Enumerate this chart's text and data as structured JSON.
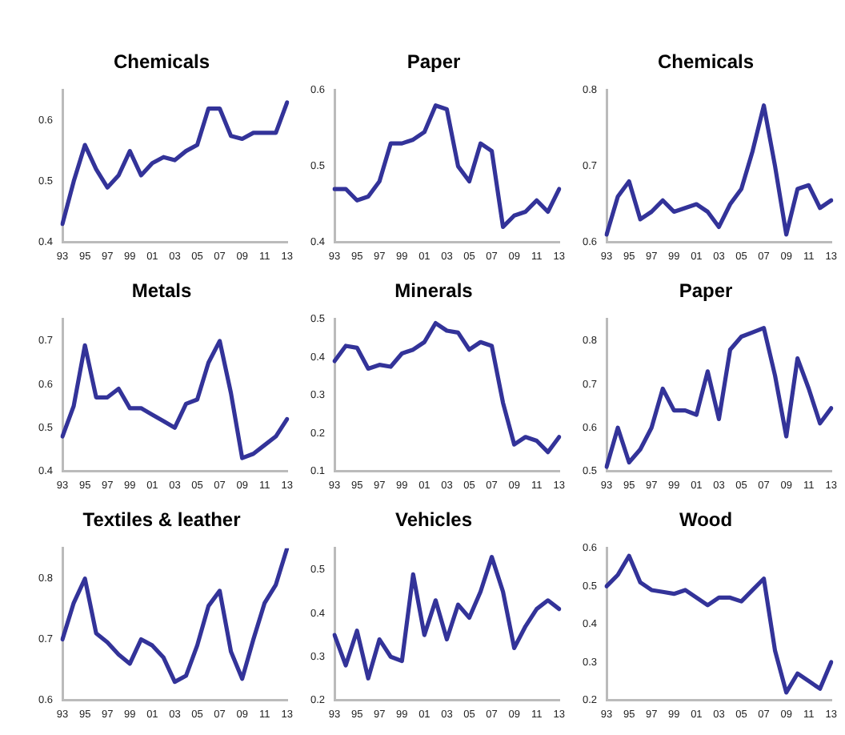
{
  "chart_data": [
    {
      "type": "line",
      "title": "Chemicals",
      "categories": [
        "93",
        null,
        "95",
        null,
        "97",
        null,
        "99",
        null,
        "01",
        null,
        "03",
        null,
        "05",
        null,
        "07",
        null,
        "09",
        null,
        "11",
        null,
        "13"
      ],
      "series": [
        {
          "color": "#333399",
          "values": [
            0.43,
            0.5,
            0.56,
            0.52,
            0.49,
            0.51,
            0.55,
            0.51,
            0.53,
            0.54,
            0.535,
            0.55,
            0.56,
            0.62,
            0.62,
            0.575,
            0.57,
            0.58,
            0.58,
            0.58,
            0.63
          ]
        }
      ],
      "ylim": [
        0.4,
        0.65
      ],
      "yticks": [
        0.4,
        0.5,
        0.6
      ],
      "grid": false,
      "legend": false
    },
    {
      "type": "line",
      "title": "Paper",
      "categories": [
        "93",
        null,
        "95",
        null,
        "97",
        null,
        "99",
        null,
        "01",
        null,
        "03",
        null,
        "05",
        null,
        "07",
        null,
        "09",
        null,
        "11",
        null,
        "13"
      ],
      "series": [
        {
          "color": "#333399",
          "values": [
            0.47,
            0.47,
            0.455,
            0.46,
            0.48,
            0.53,
            0.53,
            0.535,
            0.545,
            0.58,
            0.575,
            0.5,
            0.48,
            0.53,
            0.52,
            0.42,
            0.435,
            0.44,
            0.455,
            0.44,
            0.47
          ]
        }
      ],
      "ylim": [
        0.4,
        0.6
      ],
      "yticks": [
        0.4,
        0.5,
        0.6
      ],
      "grid": false,
      "legend": false
    },
    {
      "type": "line",
      "title": "Chemicals",
      "categories": [
        "93",
        null,
        "95",
        null,
        "97",
        null,
        "99",
        null,
        "01",
        null,
        "03",
        null,
        "05",
        null,
        "07",
        null,
        "09",
        null,
        "11",
        null,
        "13"
      ],
      "series": [
        {
          "color": "#333399",
          "values": [
            0.61,
            0.66,
            0.68,
            0.63,
            0.64,
            0.655,
            0.64,
            0.645,
            0.65,
            0.64,
            0.62,
            0.65,
            0.67,
            0.72,
            0.78,
            0.7,
            0.61,
            0.67,
            0.675,
            0.645,
            0.655
          ]
        }
      ],
      "ylim": [
        0.6,
        0.8
      ],
      "yticks": [
        0.6,
        0.7,
        0.8
      ],
      "grid": false,
      "legend": false
    },
    {
      "type": "line",
      "title": "Metals",
      "categories": [
        "93",
        null,
        "95",
        null,
        "97",
        null,
        "99",
        null,
        "01",
        null,
        "03",
        null,
        "05",
        null,
        "07",
        null,
        "09",
        null,
        "11",
        null,
        "13"
      ],
      "series": [
        {
          "color": "#333399",
          "values": [
            0.48,
            0.55,
            0.69,
            0.57,
            0.57,
            0.59,
            0.545,
            0.545,
            0.53,
            0.515,
            0.5,
            0.555,
            0.565,
            0.65,
            0.7,
            0.58,
            0.43,
            0.44,
            0.46,
            0.48,
            0.52
          ]
        }
      ],
      "ylim": [
        0.4,
        0.75
      ],
      "yticks": [
        0.4,
        0.5,
        0.6,
        0.7
      ],
      "grid": false,
      "legend": false
    },
    {
      "type": "line",
      "title": "Minerals",
      "categories": [
        "93",
        null,
        "95",
        null,
        "97",
        null,
        "99",
        null,
        "01",
        null,
        "03",
        null,
        "05",
        null,
        "07",
        null,
        "09",
        null,
        "11",
        null,
        "13"
      ],
      "series": [
        {
          "color": "#333399",
          "values": [
            0.39,
            0.43,
            0.425,
            0.37,
            0.38,
            0.375,
            0.41,
            0.42,
            0.44,
            0.49,
            0.47,
            0.465,
            0.42,
            0.44,
            0.43,
            0.28,
            0.17,
            0.19,
            0.18,
            0.15,
            0.19
          ]
        }
      ],
      "ylim": [
        0.1,
        0.5
      ],
      "yticks": [
        0.1,
        0.2,
        0.3,
        0.4,
        0.5
      ],
      "grid": false,
      "legend": false
    },
    {
      "type": "line",
      "title": "Paper",
      "categories": [
        "93",
        null,
        "95",
        null,
        "97",
        null,
        "99",
        null,
        "01",
        null,
        "03",
        null,
        "05",
        null,
        "07",
        null,
        "09",
        null,
        "11",
        null,
        "13"
      ],
      "series": [
        {
          "color": "#333399",
          "values": [
            0.51,
            0.6,
            0.52,
            0.55,
            0.6,
            0.69,
            0.64,
            0.64,
            0.63,
            0.73,
            0.62,
            0.78,
            0.81,
            0.82,
            0.83,
            0.72,
            0.58,
            0.76,
            0.69,
            0.61,
            0.645
          ]
        }
      ],
      "ylim": [
        0.5,
        0.85
      ],
      "yticks": [
        0.5,
        0.6,
        0.7,
        0.8
      ],
      "grid": false,
      "legend": false
    },
    {
      "type": "line",
      "title": "Textiles & leather",
      "categories": [
        "93",
        null,
        "95",
        null,
        "97",
        null,
        "99",
        null,
        "01",
        null,
        "03",
        null,
        "05",
        null,
        "07",
        null,
        "09",
        null,
        "11",
        null,
        "13"
      ],
      "series": [
        {
          "color": "#333399",
          "values": [
            0.7,
            0.76,
            0.8,
            0.71,
            0.695,
            0.675,
            0.66,
            0.7,
            0.69,
            0.67,
            0.63,
            0.64,
            0.69,
            0.755,
            0.78,
            0.68,
            0.635,
            0.7,
            0.76,
            0.79,
            0.85
          ]
        }
      ],
      "ylim": [
        0.6,
        0.85
      ],
      "yticks": [
        0.6,
        0.7,
        0.8
      ],
      "grid": false,
      "legend": false
    },
    {
      "type": "line",
      "title": "Vehicles",
      "categories": [
        "93",
        null,
        "95",
        null,
        "97",
        null,
        "99",
        null,
        "01",
        null,
        "03",
        null,
        "05",
        null,
        "07",
        null,
        "09",
        null,
        "11",
        null,
        "13"
      ],
      "series": [
        {
          "color": "#333399",
          "values": [
            0.35,
            0.28,
            0.36,
            0.25,
            0.34,
            0.3,
            0.29,
            0.49,
            0.35,
            0.43,
            0.34,
            0.42,
            0.39,
            0.45,
            0.53,
            0.45,
            0.32,
            0.37,
            0.41,
            0.43,
            0.41
          ]
        }
      ],
      "ylim": [
        0.2,
        0.55
      ],
      "yticks": [
        0.2,
        0.3,
        0.4,
        0.5
      ],
      "grid": false,
      "legend": false
    },
    {
      "type": "line",
      "title": "Wood",
      "categories": [
        "93",
        null,
        "95",
        null,
        "97",
        null,
        "99",
        null,
        "01",
        null,
        "03",
        null,
        "05",
        null,
        "07",
        null,
        "09",
        null,
        "11",
        null,
        "13"
      ],
      "series": [
        {
          "color": "#333399",
          "values": [
            0.5,
            0.53,
            0.58,
            0.51,
            0.49,
            0.485,
            0.48,
            0.49,
            0.47,
            0.45,
            0.47,
            0.47,
            0.46,
            0.49,
            0.52,
            0.33,
            0.22,
            0.27,
            0.25,
            0.23,
            0.3
          ]
        }
      ],
      "ylim": [
        0.2,
        0.6
      ],
      "yticks": [
        0.2,
        0.3,
        0.4,
        0.5,
        0.6
      ],
      "grid": false,
      "legend": false
    }
  ]
}
